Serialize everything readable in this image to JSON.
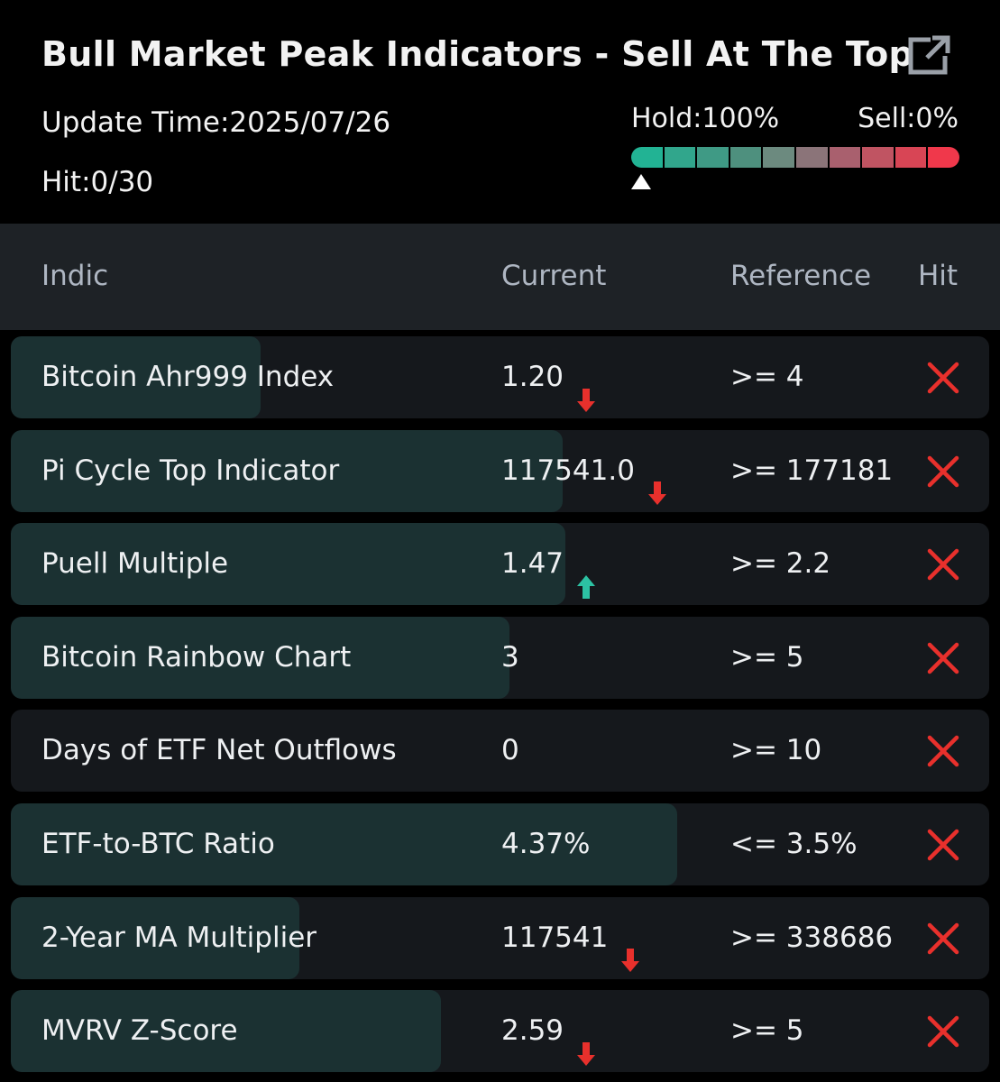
{
  "header": {
    "title": "Bull Market Peak Indicators - Sell At The Top",
    "update_time": "Update Time:2025/07/26",
    "hit": "Hit:0/30",
    "hold_label": "Hold:100%",
    "sell_label": "Sell:0%",
    "hold_fraction": 1.0,
    "gauge_colors": [
      "#22b394",
      "#31a68c",
      "#3f9a85",
      "#4e907e",
      "#6c8a7f",
      "#8b7479",
      "#a9606e",
      "#c05462",
      "#d84555",
      "#f0384b"
    ],
    "share_icon": "share-icon"
  },
  "table": {
    "columns": [
      "Indic",
      "Current",
      "Reference",
      "Hit"
    ]
  },
  "colors": {
    "down": "#e8302c",
    "up": "#2cc2a3",
    "hit_no": "#e8302c"
  },
  "rows": [
    {
      "name": "Bitcoin Ahr999 Index",
      "current": "1.20",
      "trend": "down",
      "reference": ">= 4",
      "hit": false,
      "progress": 0.255
    },
    {
      "name": "Pi Cycle Top Indicator",
      "current": "117541.0",
      "trend": "down",
      "reference": ">= 177181",
      "hit": false,
      "progress": 0.564
    },
    {
      "name": "Puell Multiple",
      "current": "1.47",
      "trend": "up",
      "reference": ">= 2.2",
      "hit": false,
      "progress": 0.567
    },
    {
      "name": "Bitcoin Rainbow Chart",
      "current": "3",
      "trend": "none",
      "reference": ">= 5",
      "hit": false,
      "progress": 0.51
    },
    {
      "name": "Days of ETF Net Outflows",
      "current": "0",
      "trend": "none",
      "reference": ">= 10",
      "hit": false,
      "progress": 0
    },
    {
      "name": "ETF-to-BTC Ratio",
      "current": "4.37%",
      "trend": "none",
      "reference": "<= 3.5%",
      "hit": false,
      "progress": 0.681
    },
    {
      "name": "2-Year MA Multiplier",
      "current": "117541",
      "trend": "down",
      "reference": ">= 338686",
      "hit": false,
      "progress": 0.295
    },
    {
      "name": "MVRV Z-Score",
      "current": "2.59",
      "trend": "down",
      "reference": ">= 5",
      "hit": false,
      "progress": 0.44
    }
  ]
}
